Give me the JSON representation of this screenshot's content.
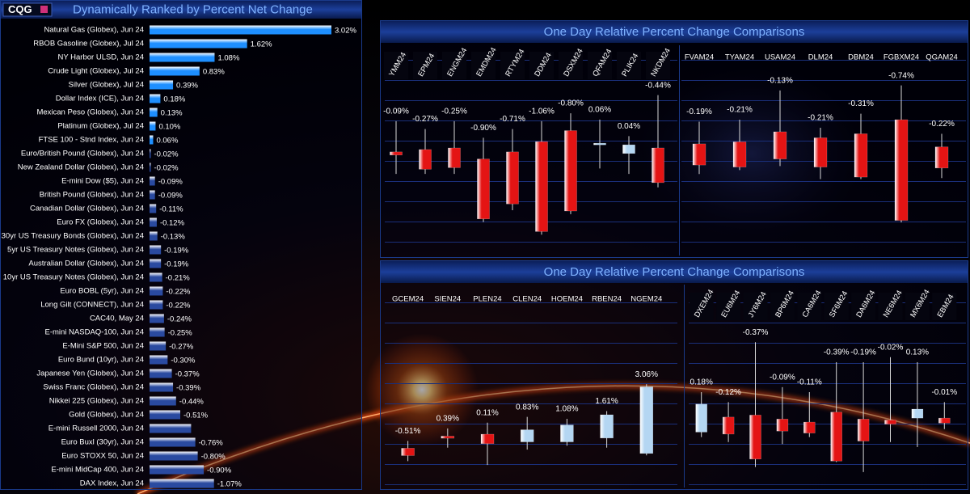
{
  "header": {
    "logo": "CQG"
  },
  "chart_data": [
    {
      "type": "bar",
      "title": "Dynamically Ranked by Percent Net Change",
      "categories": [
        "Natural Gas (Globex), Jun 24",
        "RBOB Gasoline (Globex), Jul 24",
        "NY Harbor ULSD, Jun 24",
        "Crude Light (Globex), Jul 24",
        "Silver (Globex), Jul 24",
        "Dollar Index (ICE), Jun 24",
        "Mexican Peso (Globex), Jun 24",
        "Platinum (Globex), Jul 24",
        "FTSE 100 - Stnd Index, Jun 24",
        "Euro/British Pound (Globex), Jun 24",
        "New Zealand Dollar (Globex), Jun 24",
        "E-mini Dow ($5), Jun 24",
        "British Pound (Globex), Jun 24",
        "Canadian Dollar (Globex), Jun 24",
        "Euro FX (Globex), Jun 24",
        "30yr US Treasury Bonds (Globex), Jun 24",
        "5yr US Treasury Notes (Globex), Jun 24",
        "Australian Dollar (Globex), Jun 24",
        "10yr US Treasury Notes (Globex), Jun 24",
        "Euro BOBL (5yr), Jun 24",
        "Long Gilt (CONNECT), Jun 24",
        "CAC40, May 24",
        "E-mini NASDAQ-100, Jun 24",
        "E-Mini S&P 500, Jun 24",
        "Euro Bund (10yr), Jun 24",
        "Japanese Yen (Globex), Jun 24",
        "Swiss Franc (Globex), Jun 24",
        "Nikkei 225 (Globex), Jun 24",
        "Gold (Globex), Jun 24",
        "E-mini Russell 2000, Jun 24",
        "Euro Buxl (30yr), Jun 24",
        "Euro STOXX 50, Jun 24",
        "E-mini MidCap 400, Jun 24",
        "DAX Index, Jun 24"
      ],
      "values": [
        3.02,
        1.62,
        1.08,
        0.83,
        0.39,
        0.18,
        0.13,
        0.1,
        0.06,
        -0.02,
        -0.02,
        -0.09,
        -0.09,
        -0.11,
        -0.12,
        -0.13,
        -0.19,
        -0.19,
        -0.21,
        -0.22,
        -0.22,
        -0.24,
        -0.25,
        -0.27,
        -0.3,
        -0.37,
        -0.39,
        -0.44,
        -0.51,
        -0.69,
        -0.76,
        -0.8,
        -0.9,
        -1.07
      ],
      "value_labels": [
        "3.02%",
        "1.62%",
        "1.08%",
        "0.83%",
        "0.39%",
        "0.18%",
        "0.13%",
        "0.10%",
        "0.06%",
        "-0.02%",
        "-0.02%",
        "-0.09%",
        "-0.09%",
        "-0.11%",
        "-0.12%",
        "-0.13%",
        "-0.19%",
        "-0.19%",
        "-0.21%",
        "-0.22%",
        "-0.22%",
        "-0.24%",
        "-0.25%",
        "-0.27%",
        "-0.30%",
        "-0.37%",
        "-0.39%",
        "-0.44%",
        "-0.51%",
        null,
        "-0.76%",
        "-0.80%",
        "-0.90%",
        "-1.07%"
      ],
      "color": "#1e8fff",
      "negative_color": "#2a4aa0"
    },
    {
      "type": "candlestick",
      "title": "One Day Relative Percent Change Comparisons",
      "categories": [
        "YMM24",
        "EPM24",
        "ENGM24",
        "EMDM24",
        "RTYM24",
        "DDM24",
        "DSXM24",
        "QFAM24",
        "PLIK24",
        "NKDM24"
      ],
      "open": [
        -0.05,
        -0.02,
        0,
        -0.14,
        -0.05,
        0.08,
        0.22,
        0.05,
        -0.07,
        0
      ],
      "high": [
        0.34,
        0.24,
        0.34,
        0.13,
        0.24,
        0.34,
        0.44,
        0.36,
        0.15,
        0.67
      ],
      "low": [
        -0.33,
        -0.33,
        -0.33,
        -0.94,
        -0.79,
        -1.1,
        -0.84,
        -0.26,
        -0.33,
        -0.5
      ],
      "close": [
        -0.09,
        -0.27,
        -0.25,
        -0.9,
        -0.71,
        -1.06,
        -0.8,
        0.06,
        0.04,
        -0.44
      ],
      "value_labels": [
        "-0.09%",
        "-0.27%",
        "-0.25%",
        "-0.90%",
        "-0.71%",
        "-1.06%",
        "-0.80%",
        "0.06%",
        "0.04%",
        "-0.44%"
      ],
      "ylim": [
        -1.2,
        0.8
      ],
      "up_color": "#b4d6f2",
      "down_color": "#e41414"
    },
    {
      "type": "candlestick",
      "categories": [
        "FVAM24",
        "TYAM24",
        "USAM24",
        "DLM24",
        "DBM24",
        "FGBXM24",
        "QGAM24"
      ],
      "open": [
        0.02,
        0.04,
        0.14,
        0.08,
        0.12,
        0.26,
        -0.01
      ],
      "high": [
        0.24,
        0.26,
        0.55,
        0.18,
        0.32,
        0.6,
        0.12
      ],
      "low": [
        -0.28,
        -0.24,
        -0.2,
        -0.33,
        -0.33,
        -0.76,
        -0.32
      ],
      "close": [
        -0.19,
        -0.21,
        -0.13,
        -0.21,
        -0.31,
        -0.74,
        -0.22
      ],
      "value_labels": [
        "-0.19%",
        "-0.21%",
        "-0.13%",
        "-0.21%",
        "-0.31%",
        "-0.74%",
        "-0.22%"
      ],
      "ylim": [
        -1,
        0.75
      ],
      "up_color": "#b4d6f2",
      "down_color": "#e41414"
    },
    {
      "type": "candlestick",
      "title": "One Day Relative Percent Change Comparisons",
      "categories": [
        "GCEM24",
        "SIEN24",
        "PLEN24",
        "CLEN24",
        "HOEM24",
        "RBEN24",
        "NGEM24"
      ],
      "open": [
        -0.13,
        0.5,
        0.6,
        0.2,
        0.2,
        0.4,
        -0.4
      ],
      "high": [
        0.25,
        0.9,
        1.2,
        1.5,
        1.4,
        1.8,
        3.2
      ],
      "low": [
        -0.8,
        -0.1,
        -1.0,
        -0.2,
        0,
        -0.1,
        -0.5
      ],
      "close": [
        -0.51,
        0.39,
        0.11,
        0.83,
        1.08,
        1.61,
        3.06
      ],
      "value_labels": [
        "-0.51%",
        "0.39%",
        "0.11%",
        "0.83%",
        "1.08%",
        "1.61%",
        "3.06%"
      ],
      "ylim": [
        -1.5,
        7.2
      ],
      "up_color": "#b4d6f2",
      "down_color": "#e41414"
    },
    {
      "type": "candlestick",
      "categories": [
        "DXEM24",
        "EU6M24",
        "JY6M24",
        "BP6M24",
        "CA6M24",
        "SF6M24",
        "DA6M24",
        "NE6M24",
        "MX6M24",
        "EBM24"
      ],
      "open": [
        -0.1,
        0.05,
        0.07,
        0.03,
        0,
        0.1,
        0.03,
        0.02,
        0.04,
        0.04
      ],
      "high": [
        0.3,
        0.2,
        0.8,
        0.35,
        0.3,
        0.6,
        0.6,
        0.65,
        0.6,
        0.2
      ],
      "low": [
        -0.15,
        -0.2,
        -0.45,
        -0.22,
        -0.15,
        -0.4,
        -0.5,
        -0.2,
        -0.25,
        -0.07
      ],
      "close": [
        0.18,
        -0.12,
        -0.37,
        -0.09,
        -0.11,
        -0.39,
        -0.19,
        -0.02,
        0.13,
        -0.01
      ],
      "value_labels": [
        "0.18%",
        "-0.12%",
        "-0.37%",
        "-0.09%",
        "-0.11%",
        "-0.39%",
        "-0.19%",
        "-0.02%",
        "0.13%",
        "-0.01%"
      ],
      "ylim": [
        -0.55,
        1.15
      ],
      "up_color": "#b4d6f2",
      "down_color": "#e41414"
    }
  ]
}
